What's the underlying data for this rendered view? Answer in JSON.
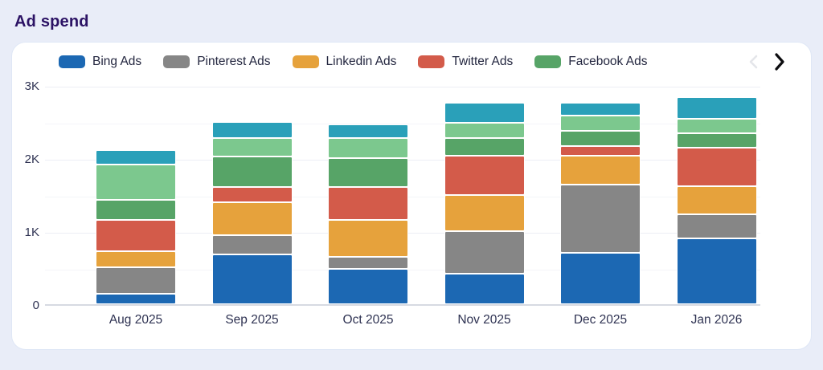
{
  "page": {
    "title": "Ad spend"
  },
  "legend": {
    "items": [
      {
        "label": "Bing Ads",
        "color": "#1c68b3"
      },
      {
        "label": "Pinterest Ads",
        "color": "#868686"
      },
      {
        "label": "Linkedin Ads",
        "color": "#e6a23c"
      },
      {
        "label": "Twitter Ads",
        "color": "#d35b4a"
      },
      {
        "label": "Facebook Ads",
        "color": "#57a467"
      }
    ]
  },
  "chart_data": {
    "type": "bar",
    "stacked": true,
    "title": "Ad spend",
    "categories": [
      "Aug 2025",
      "Sep 2025",
      "Oct 2025",
      "Nov 2025",
      "Dec 2025",
      "Jan 2026"
    ],
    "series": [
      {
        "name": "Bing Ads",
        "color": "#1c68b3",
        "values": [
          140,
          680,
          485,
          420,
          705,
          900
        ]
      },
      {
        "name": "Pinterest Ads",
        "color": "#868686",
        "values": [
          370,
          260,
          165,
          580,
          935,
          330
        ]
      },
      {
        "name": "Linkedin Ads",
        "color": "#e6a23c",
        "values": [
          210,
          455,
          505,
          495,
          390,
          385
        ]
      },
      {
        "name": "Twitter Ads",
        "color": "#d35b4a",
        "values": [
          430,
          210,
          450,
          535,
          135,
          525
        ]
      },
      {
        "name": "Facebook Ads",
        "color": "#57a467",
        "values": [
          280,
          420,
          400,
          250,
          210,
          200
        ]
      },
      {
        "name": "",
        "color": "#7cc88e",
        "values": [
          480,
          250,
          265,
          205,
          210,
          195
        ]
      },
      {
        "name": "",
        "color": "#2aa0b9",
        "values": [
          200,
          225,
          190,
          275,
          175,
          305
        ]
      }
    ],
    "xlabel": "",
    "ylabel": "",
    "ylim": [
      0,
      3000
    ],
    "yticks": [
      {
        "value": 0,
        "label": "0"
      },
      {
        "value": 1000,
        "label": "1K"
      },
      {
        "value": 2000,
        "label": "2K"
      },
      {
        "value": 3000,
        "label": "3K"
      }
    ],
    "gridlines_every": 500,
    "legend_position": "top"
  }
}
